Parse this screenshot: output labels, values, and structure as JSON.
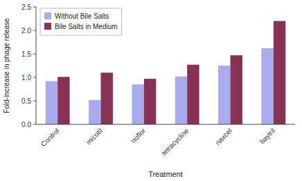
{
  "chart_data": {
    "type": "bar",
    "xlabel": "Treatment",
    "ylabel": "Fold-increase in phage release",
    "categories": [
      "Control",
      "micotil",
      "nuflor",
      "tetracycline",
      "naxcel",
      "baytril"
    ],
    "series": [
      {
        "name": "Without Bile Salts",
        "color": "#aaaaee",
        "values": [
          0.92,
          0.52,
          0.85,
          1.02,
          1.25,
          1.62
        ]
      },
      {
        "name": "Bile Salts in Medium",
        "color": "#883355",
        "values": [
          1.01,
          1.1,
          0.97,
          1.27,
          1.47,
          2.2
        ]
      }
    ],
    "ylim": [
      0,
      2.5
    ],
    "yticks": [
      {
        "value": 0,
        "label": "0.0"
      },
      0.5,
      {
        "value": 1,
        "label": "1.0"
      },
      1.5,
      {
        "value": 2,
        "label": "2.0"
      },
      2.5
    ],
    "grid": false,
    "legend": "upper left"
  }
}
